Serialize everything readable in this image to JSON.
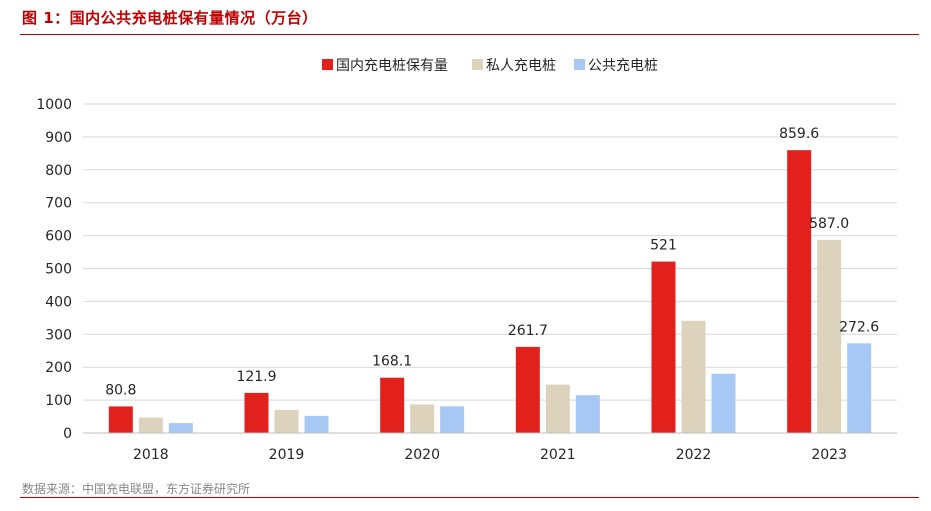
{
  "figure": {
    "title": "图 1：国内公共充电桩保有量情况（万台）",
    "source": "数据来源：中国充电联盟，东方证券研究所"
  },
  "colors": {
    "accent": "#c00000",
    "series": [
      "#e2211c",
      "#ddd3bd",
      "#a7c7f5"
    ]
  },
  "chart_data": {
    "type": "bar",
    "categories": [
      "2018",
      "2019",
      "2020",
      "2021",
      "2022",
      "2023"
    ],
    "series": [
      {
        "name": "国内充电桩保有量",
        "values": [
          80.8,
          121.9,
          168.1,
          261.7,
          521,
          859.6
        ],
        "labels": [
          "80.8",
          "121.9",
          "168.1",
          "261.7",
          "521",
          "859.6"
        ]
      },
      {
        "name": "私人充电桩",
        "values": [
          47,
          70,
          87,
          147,
          341,
          587.0
        ],
        "labels": [
          "",
          "",
          "",
          "",
          "",
          "587.0"
        ]
      },
      {
        "name": "公共充电桩",
        "values": [
          30,
          52,
          81,
          115,
          180,
          272.6
        ],
        "labels": [
          "",
          "",
          "",
          "",
          "",
          "272.6"
        ]
      }
    ],
    "ylim": [
      0,
      1000
    ],
    "yticks": [
      "0",
      "100",
      "200",
      "300",
      "400",
      "500",
      "600",
      "700",
      "800",
      "900",
      "1000"
    ],
    "grid": true,
    "legend": "top-center",
    "xlabel": "",
    "ylabel": ""
  }
}
